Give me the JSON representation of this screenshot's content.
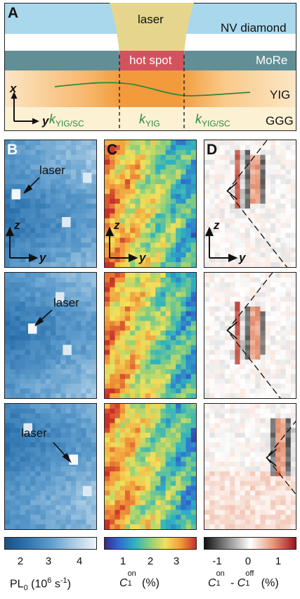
{
  "panelA": {
    "letter": "A",
    "layers": {
      "laser": "laser",
      "nv_diamond": "NV diamond",
      "hot_spot": "hot spot",
      "more": "MoRe",
      "yig": "YIG",
      "ggg": "GGG"
    },
    "axis_x": "x",
    "axis_y": "y",
    "k_letter": "k",
    "k_left_sub": "YIG/SC",
    "k_mid_sub": "YIG",
    "k_right_sub": "YIG/SC"
  },
  "panelB": {
    "letter": "B",
    "laser_labels": [
      "laser",
      "laser",
      "laser"
    ],
    "axis_z": "z",
    "axis_y": "y"
  },
  "panelC": {
    "letter": "C",
    "axis_z": "z",
    "axis_y": "y"
  },
  "panelD": {
    "letter": "D",
    "axis_z": "z",
    "axis_y": "y"
  },
  "colorbars": {
    "pl": {
      "ticks": [
        "2",
        "3",
        "4"
      ],
      "title_main": "PL",
      "title_sub": "0",
      "title_unit_pre": "(10",
      "title_exp": "6",
      "title_unit_mid": " s",
      "title_exp2": "-1",
      "title_unit_post": ")",
      "colors": [
        "#1a4f86",
        "#2f75b0",
        "#5e9ccc",
        "#a9cce4",
        "#eef4f9"
      ]
    },
    "c1on": {
      "ticks": [
        "1",
        "2",
        "3"
      ],
      "title_c": "C",
      "title_sub": "1",
      "title_sup": "on",
      "title_unit": " (%)",
      "colors": [
        "#3a2a8c",
        "#2f6fd0",
        "#2fb3c0",
        "#8fd07a",
        "#f3e05a",
        "#f29a3a",
        "#c8302a"
      ]
    },
    "diff": {
      "ticks": [
        "-1",
        "0",
        "1"
      ],
      "title_c": "C",
      "title_sub": "1",
      "title_sup": "on",
      "title_minus": " - ",
      "title_c2": "C",
      "title_sub2": "1",
      "title_sup2": "off",
      "title_unit": " (%)",
      "colors": [
        "#111111",
        "#8a8a8a",
        "#ffffff",
        "#e89a7a",
        "#9b1420"
      ]
    }
  }
}
